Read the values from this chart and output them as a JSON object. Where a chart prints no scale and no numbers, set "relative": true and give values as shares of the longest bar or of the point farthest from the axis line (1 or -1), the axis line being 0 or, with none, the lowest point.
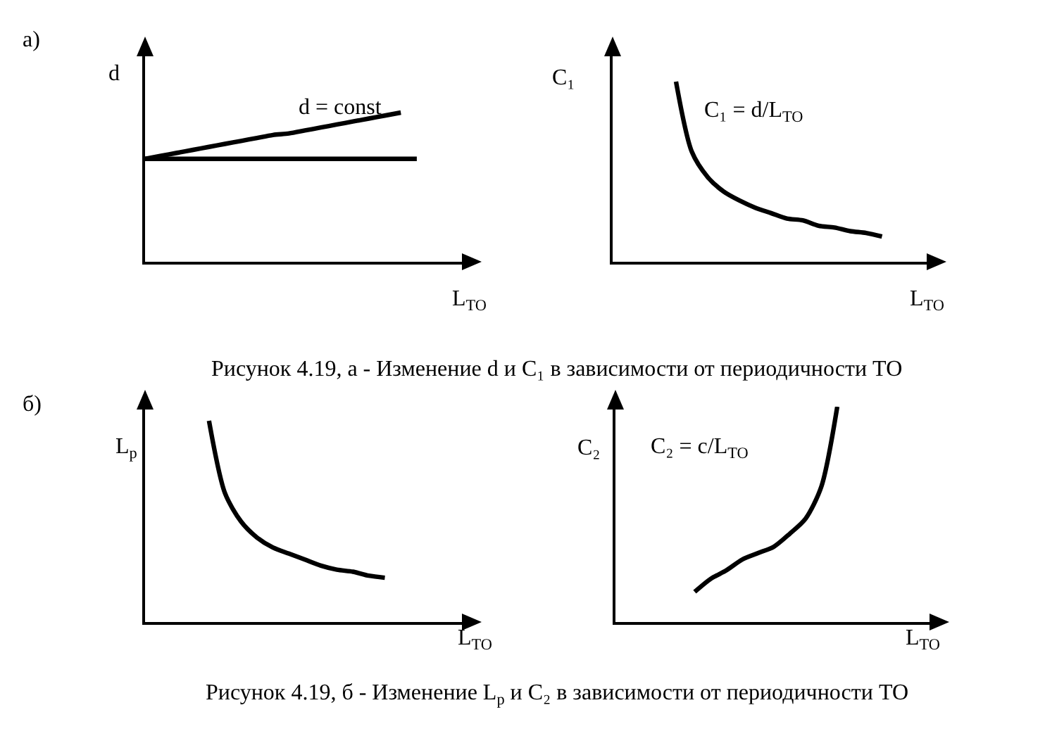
{
  "chart_data": [
    {
      "type": "line",
      "relative": true,
      "xlabel": "L$_{TO}$",
      "ylabel": "d",
      "annotations": [
        "d = const",
        "а)",
        "Рисунок 4.19, а - Изменение d и C₁ в зависимости от периодичности ТО"
      ],
      "categories": [
        null,
        null,
        null,
        null,
        null,
        null,
        null,
        null,
        null,
        null,
        null,
        null,
        null,
        null,
        null,
        null,
        null,
        null,
        null,
        null
      ],
      "series": [
        {
          "color": "#000000",
          "values": [
            0.69,
            0.71,
            0.73,
            0.75,
            0.77,
            0.79,
            0.81,
            0.83,
            0.85,
            0.86,
            0.88,
            0.9,
            0.92,
            0.94,
            0.96,
            0.98,
            1.0,
            null,
            null,
            null
          ]
        },
        {
          "color": "#000000",
          "values": [
            0.69,
            0.69,
            0.69,
            0.69,
            0.69,
            0.69,
            0.69,
            0.69,
            0.69,
            0.69,
            0.69,
            0.69,
            0.69,
            0.69,
            0.69,
            0.69,
            0.69,
            0.69,
            null,
            null
          ]
        }
      ],
      "line_style": "solid",
      "marker": "none",
      "tick_labels": false
    },
    {
      "type": "line",
      "relative": true,
      "xlabel": "L$_{TO}$",
      "ylabel": "C₁",
      "annotations": [
        "C₁ = d/L$_{TO}$"
      ],
      "categories": [
        null,
        null,
        null,
        null,
        null,
        null,
        null,
        null,
        null,
        null,
        null,
        null,
        null,
        null,
        null,
        null,
        null,
        null,
        null,
        null
      ],
      "series": [
        {
          "color": "#000000",
          "values": [
            null,
            null,
            null,
            null,
            1.0,
            0.61,
            0.47,
            0.39,
            0.34,
            0.3,
            0.27,
            0.24,
            0.23,
            0.2,
            0.19,
            0.17,
            0.16,
            0.14,
            null,
            null
          ]
        }
      ],
      "line_style": "solid",
      "marker": "none",
      "tick_labels": false
    },
    {
      "type": "line",
      "relative": true,
      "xlabel": "L$_{TO}$",
      "ylabel": "L$_{р}$",
      "annotations": [
        "б)",
        "Рисунок 4.19, б - Изменение L$_{р}$ и C₂ в зависимости от периодичности ТО"
      ],
      "categories": [
        null,
        null,
        null,
        null,
        null,
        null,
        null,
        null,
        null,
        null,
        null,
        null,
        null,
        null,
        null,
        null,
        null,
        null,
        null,
        null
      ],
      "series": [
        {
          "color": "#000000",
          "values": [
            null,
            null,
            null,
            null,
            1.0,
            0.64,
            0.5,
            0.42,
            0.37,
            0.34,
            0.31,
            0.28,
            0.26,
            0.25,
            0.23,
            0.22,
            null,
            null,
            null,
            null
          ]
        }
      ],
      "line_style": "solid",
      "marker": "none",
      "tick_labels": false
    },
    {
      "type": "line",
      "relative": true,
      "xlabel": "L$_{TO}$",
      "ylabel": "C₂",
      "annotations": [
        "C₂ = c/L$_{TO}$"
      ],
      "categories": [
        null,
        null,
        null,
        null,
        null,
        null,
        null,
        null,
        null,
        null,
        null,
        null,
        null,
        null,
        null,
        null,
        null,
        null,
        null,
        null
      ],
      "series": [
        {
          "color": "#000000",
          "values": [
            null,
            null,
            null,
            null,
            null,
            0.14,
            0.2,
            0.24,
            0.29,
            0.32,
            0.35,
            0.41,
            0.48,
            0.63,
            1.0,
            null,
            null,
            null,
            null,
            null
          ]
        }
      ],
      "line_style": "solid",
      "marker": "none",
      "tick_labels": false
    }
  ]
}
